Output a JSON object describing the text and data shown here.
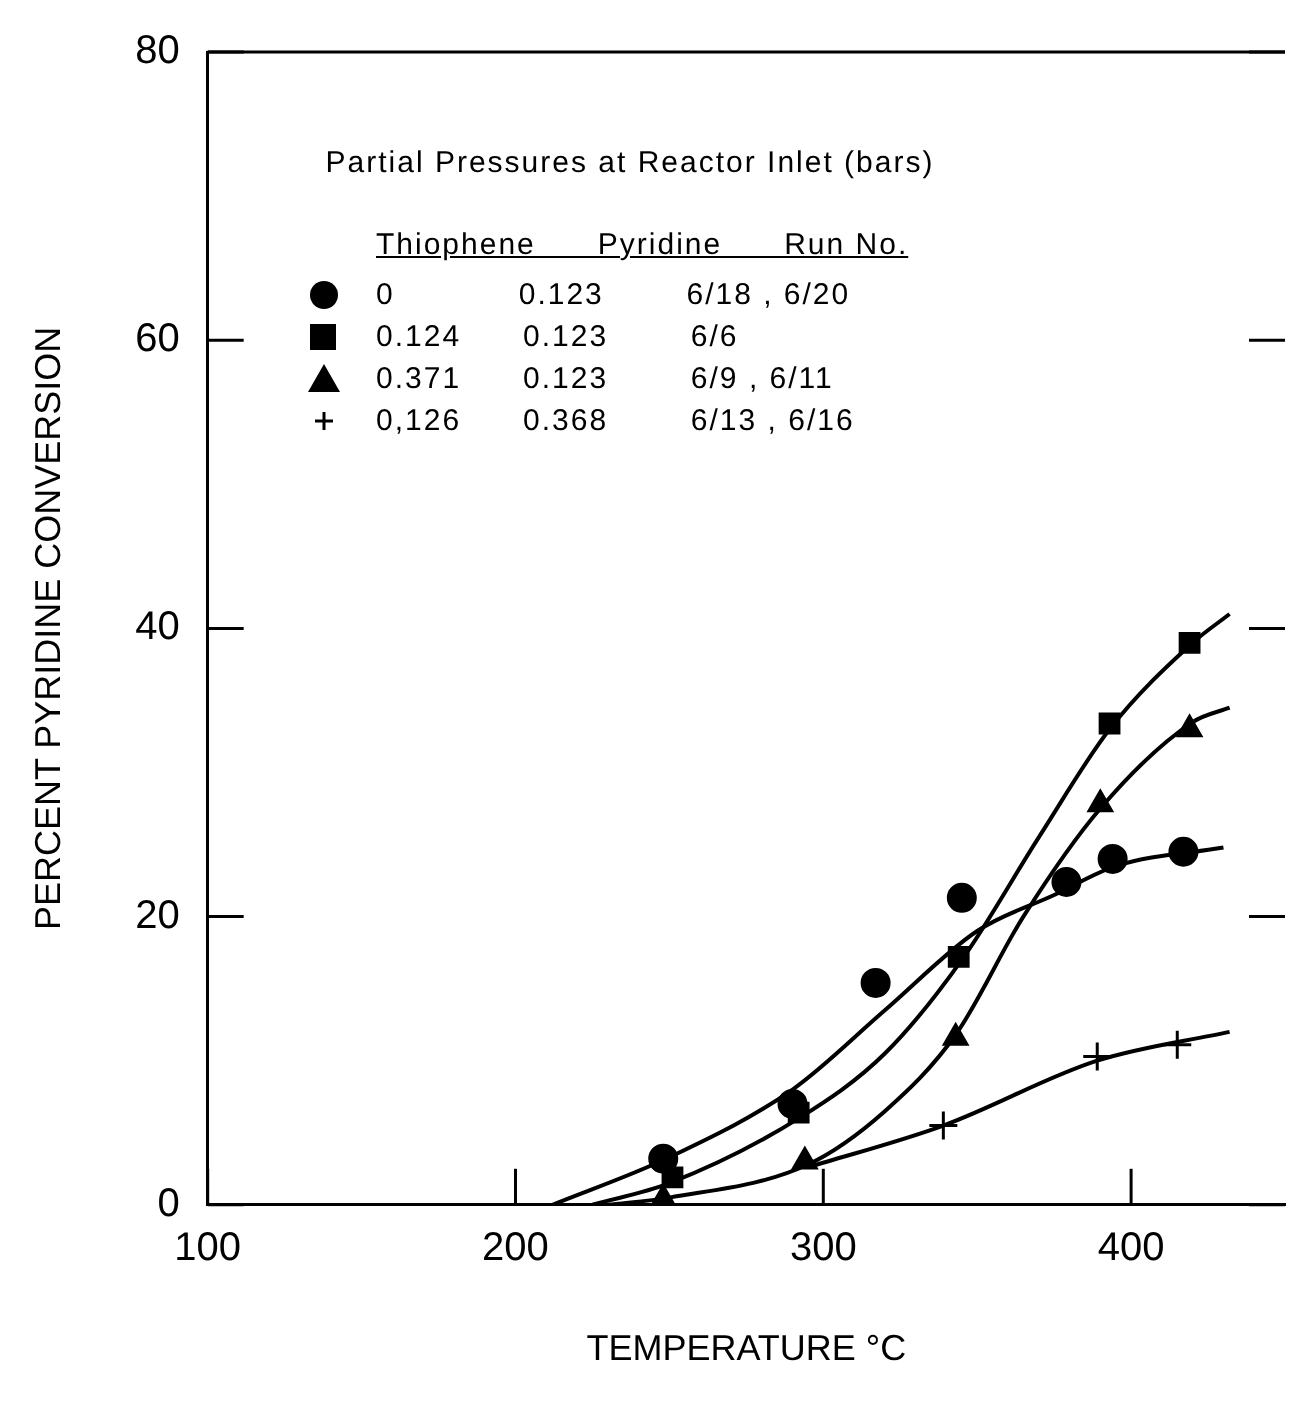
{
  "chart_data": {
    "type": "scatter",
    "xlabel": "TEMPERATURE °C",
    "ylabel": "PERCENT PYRIDINE CONVERSION",
    "legend_title": "Partial Pressures at Reactor Inlet (bars)",
    "annotations": [
      "Thiophene      Pyridine      Run No."
    ],
    "xlim": [
      100,
      450
    ],
    "xticks": [
      100,
      200,
      300,
      400
    ],
    "ylim": [
      0,
      80
    ],
    "yticks": [
      0,
      20,
      40,
      60,
      80
    ],
    "grid": false,
    "legend": "top",
    "series": [
      {
        "name": "0            0.123        6/18 , 6/20",
        "color": "#000000",
        "marker": "circle",
        "x": [
          248,
          290,
          317,
          345,
          379,
          394,
          417
        ],
        "values": [
          3.2,
          7,
          15.4,
          21.3,
          22.4,
          24,
          24.5
        ]
      },
      {
        "name": "0.124      0.123        6/6",
        "color": "#000000",
        "marker": "square",
        "x": [
          251,
          292,
          344,
          393,
          419
        ],
        "values": [
          1.9,
          6.4,
          17.2,
          33.4,
          39
        ]
      },
      {
        "name": "0.371      0.123        6/9 , 6/11",
        "color": "#000000",
        "marker": "triangle",
        "x": [
          248,
          294,
          343,
          390,
          419
        ],
        "values": [
          0.4,
          3,
          11.6,
          27.8,
          33
        ]
      },
      {
        "name": "0,126      0.368        6/13 , 6/16",
        "color": "#000000",
        "marker": "cross",
        "x": [
          339,
          389,
          415
        ],
        "values": [
          5.5,
          10.3,
          11.1
        ]
      },
      {
        "type": "line",
        "color": "#000000",
        "marker": "none",
        "x": [
          212,
          250,
          290,
          320,
          350,
          375,
          395,
          430
        ],
        "values": [
          0,
          3.3,
          8,
          13.5,
          19,
          21.5,
          23.5,
          24.8
        ]
      },
      {
        "type": "line",
        "color": "#000000",
        "marker": "none",
        "x": [
          225,
          250,
          292,
          320,
          345,
          370,
          393,
          420,
          432
        ],
        "values": [
          0,
          1.5,
          6,
          10.5,
          17,
          25.5,
          33,
          39,
          41
        ]
      },
      {
        "type": "line",
        "color": "#000000",
        "marker": "none",
        "x": [
          230,
          250,
          295,
          320,
          343,
          365,
          390,
          420,
          432
        ],
        "values": [
          0,
          0.5,
          2.8,
          6.5,
          11.8,
          20,
          27.5,
          33.5,
          34.5
        ]
      },
      {
        "type": "line",
        "color": "#000000",
        "marker": "none",
        "x": [
          295,
          339,
          389,
          432
        ],
        "values": [
          2.6,
          5.5,
          10,
          12
        ]
      }
    ]
  }
}
